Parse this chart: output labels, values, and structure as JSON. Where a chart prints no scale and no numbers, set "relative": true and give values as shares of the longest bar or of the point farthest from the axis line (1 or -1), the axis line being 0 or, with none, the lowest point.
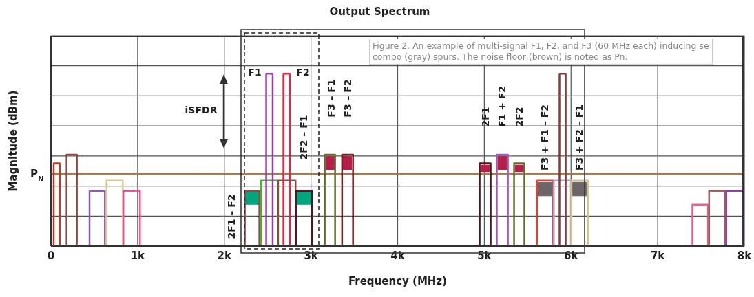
{
  "chart_data": {
    "type": "line",
    "title": "Output Spectrum",
    "xlabel": "Frequency (MHz)",
    "ylabel": "Magnitude (dBm)",
    "relative": true,
    "grid": true,
    "marker": "none",
    "line_style": "solid",
    "xlim": [
      0,
      8000
    ],
    "xticks": [
      0,
      {
        "value": 1000,
        "label": "1k"
      },
      {
        "value": 2000,
        "label": "2k"
      },
      {
        "value": 3000,
        "label": "3k"
      },
      {
        "value": 4000,
        "label": "4k"
      },
      {
        "value": 5000,
        "label": "5k"
      },
      {
        "value": 6000,
        "label": "6k"
      },
      {
        "value": 7000,
        "label": "7k"
      },
      {
        "value": 8000,
        "label": "8k"
      }
    ],
    "series": [
      {
        "color": "#c8321e",
        "x": [
          32,
          32,
          101,
          101
        ],
        "values": [
          0,
          0.48,
          0.48,
          0
        ]
      },
      {
        "color": "#8b4a44",
        "x": [
          180,
          180,
          299,
          299
        ],
        "values": [
          0,
          0.53,
          0.53,
          0
        ]
      },
      {
        "color": "#8e5bb5",
        "x": [
          445,
          445,
          622,
          622
        ],
        "values": [
          0,
          0.32,
          0.32,
          0
        ]
      },
      {
        "color": "#d9c98a",
        "x": [
          641,
          641,
          829,
          829
        ],
        "values": [
          0,
          0.38,
          0.38,
          0
        ]
      },
      {
        "color": "#ef4f8a",
        "x": [
          836,
          836,
          1027,
          1027
        ],
        "values": [
          0,
          0.32,
          0.32,
          0
        ]
      },
      {
        "type": "area",
        "color": "#00a67e",
        "x": [
          2245,
          2245,
          2395,
          2395
        ],
        "values": [
          0.24,
          0.32,
          0.32,
          0.24
        ]
      },
      {
        "color": "#8b4a44",
        "x": [
          2237,
          2237,
          2404,
          2404
        ],
        "values": [
          0,
          0.32,
          0.32,
          0
        ]
      },
      {
        "color": "#4caf2e",
        "x": [
          2424,
          2424,
          2616,
          2616
        ],
        "values": [
          0,
          0.38,
          0.38,
          0
        ]
      },
      {
        "color": "#9b3fa8",
        "x": [
          2483,
          2483,
          2558,
          2558
        ],
        "values": [
          0,
          1,
          1,
          0
        ]
      },
      {
        "color": "#e8253e",
        "x": [
          2682,
          2682,
          2756,
          2756
        ],
        "values": [
          0,
          1,
          1,
          0
        ]
      },
      {
        "color": "#8b4a44",
        "x": [
          2621,
          2621,
          2822,
          2822
        ],
        "values": [
          0,
          0.38,
          0.38,
          0
        ]
      },
      {
        "type": "area",
        "color": "#00a67e",
        "x": [
          2840,
          2840,
          2999,
          2999
        ],
        "values": [
          0.24,
          0.32,
          0.32,
          0.24
        ]
      },
      {
        "color": "#4a1a22",
        "x": [
          2828,
          2828,
          3013,
          3013
        ],
        "values": [
          0,
          0.32,
          0.32,
          0
        ]
      },
      {
        "type": "area",
        "color": "#b51f4a",
        "x": [
          3172,
          3172,
          3270,
          3270
        ],
        "values": [
          0.44,
          0.52,
          0.52,
          0.44
        ]
      },
      {
        "color": "#5b6e2e",
        "x": [
          3159,
          3159,
          3278,
          3278
        ],
        "values": [
          0,
          0.53,
          0.53,
          0
        ]
      },
      {
        "type": "area",
        "color": "#b51f4a",
        "x": [
          3362,
          3362,
          3468,
          3468
        ],
        "values": [
          0.44,
          0.52,
          0.52,
          0.44
        ]
      },
      {
        "color": "#7a1e1e",
        "x": [
          3359,
          3359,
          3485,
          3485
        ],
        "values": [
          0,
          0.53,
          0.53,
          0
        ]
      },
      {
        "type": "area",
        "color": "#b51f4a",
        "x": [
          4959,
          4959,
          5065,
          5065
        ],
        "values": [
          0.43,
          0.47,
          0.47,
          0.43
        ]
      },
      {
        "color": "#4a1a1a",
        "x": [
          4946,
          4946,
          5073,
          5073
        ],
        "values": [
          0,
          0.48,
          0.48,
          0
        ]
      },
      {
        "type": "area",
        "color": "#b51f4a",
        "x": [
          5156,
          5156,
          5258,
          5258
        ],
        "values": [
          0.44,
          0.52,
          0.52,
          0.44
        ]
      },
      {
        "color": "#a45cb0",
        "x": [
          5144,
          5144,
          5272,
          5272
        ],
        "values": [
          0,
          0.53,
          0.53,
          0
        ]
      },
      {
        "type": "area",
        "color": "#b51f4a",
        "x": [
          5356,
          5356,
          5456,
          5456
        ],
        "values": [
          0.43,
          0.47,
          0.47,
          0.43
        ]
      },
      {
        "color": "#5b6e2e",
        "x": [
          5343,
          5343,
          5462,
          5462
        ],
        "values": [
          0,
          0.48,
          0.48,
          0
        ]
      },
      {
        "type": "area",
        "color": "#6b6568",
        "x": [
          5621,
          5621,
          5780,
          5780
        ],
        "values": [
          0.29,
          0.37,
          0.37,
          0.29
        ]
      },
      {
        "color": "#f03a2e",
        "x": [
          5608,
          5608,
          5794,
          5794
        ],
        "values": [
          0,
          0.38,
          0.38,
          0
        ]
      },
      {
        "color": "#a9a9d4",
        "x": [
          5802,
          5802,
          5998,
          5998
        ],
        "values": [
          0,
          0.38,
          0.38,
          0
        ]
      },
      {
        "color": "#8b3a3a",
        "x": [
          5867,
          5867,
          5939,
          5939
        ],
        "values": [
          0,
          1,
          1,
          0
        ]
      },
      {
        "type": "area",
        "color": "#6b6568",
        "x": [
          6017,
          6017,
          6176,
          6176
        ],
        "values": [
          0.29,
          0.37,
          0.37,
          0.29
        ]
      },
      {
        "color": "#d4c48a",
        "x": [
          6005,
          6005,
          6195,
          6195
        ],
        "values": [
          0,
          0.38,
          0.38,
          0
        ]
      },
      {
        "color": "#ef5f8a",
        "x": [
          7400,
          7400,
          7580,
          7580
        ],
        "values": [
          0,
          0.24,
          0.24,
          0
        ]
      },
      {
        "color": "#a0605a",
        "x": [
          7593,
          7593,
          7778,
          7778
        ],
        "values": [
          0,
          0.32,
          0.32,
          0
        ]
      },
      {
        "color": "#8e3fa8",
        "x": [
          7792,
          7792,
          7983,
          7983
        ],
        "values": [
          0,
          0.32,
          0.32,
          0
        ]
      }
    ],
    "ref_lines": [
      {
        "axis": "y",
        "value": 0.42,
        "label": "P$_{N}$",
        "color": "#a87a4e"
      }
    ],
    "annotations": [
      "F1",
      "F2",
      "2F1 – F2",
      "2F2 – F1",
      "F3 – F1",
      "F3 – F2",
      "2F1",
      "F1 + F2",
      "2F2",
      "F3 + F1 – F2",
      "F3 + F2 – F1",
      "iSFDR",
      "Figure 2. An example of multi-signal F1, F2, and F3 (60 MHz each) inducing se",
      "combo (gray) spurs. The noise floor (brown) is noted as Pn."
    ]
  }
}
